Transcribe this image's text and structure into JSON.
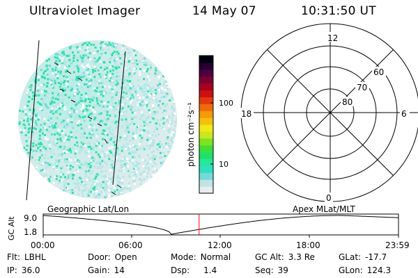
{
  "header": {
    "title": "Ultraviolet Imager",
    "date": "14 May 07",
    "time": "10:31:50 UT"
  },
  "colorbar": {
    "label": "photon cm⁻²s⁻¹",
    "ticks": [
      "100",
      "10"
    ],
    "colors": [
      "#e8ecec",
      "#bfe3e3",
      "#73d9d9",
      "#2fe0c0",
      "#24e89a",
      "#1fe06a",
      "#3de03a",
      "#7ee31f",
      "#c8e81a",
      "#f0ea12",
      "#f5c00c",
      "#f59a08",
      "#f06a08",
      "#e23a0a",
      "#cc1010",
      "#a8001e",
      "#7a0030",
      "#4e0040",
      "#250030",
      "#000010"
    ]
  },
  "polar_plot": {
    "mlt_labels": [
      "12",
      "18",
      "6",
      "0"
    ],
    "lat_labels": [
      "60",
      "70",
      "80"
    ]
  },
  "timeline": {
    "label_left": "Geographic Lat/Lon",
    "label_right": "Apex MLat/MLT",
    "y_axis_label": "GC Alt",
    "y_ticks": [
      "9.0",
      "1.8"
    ],
    "x_ticks": [
      "00:00",
      "06:00",
      "12:00",
      "18:00",
      "23:59"
    ],
    "current_marker_color": "#ff0000"
  },
  "footer": {
    "row1": [
      {
        "key": "Flt:",
        "value": "LBHL"
      },
      {
        "key": "Door:",
        "value": "Open"
      },
      {
        "key": "Mode:",
        "value": "Normal"
      },
      {
        "key": "GC Alt:",
        "value": "3.3 Re"
      },
      {
        "key": "GLat:",
        "value": "-17.7"
      }
    ],
    "row2": [
      {
        "key": "IP:",
        "value": "36.0"
      },
      {
        "key": "Gain:",
        "value": "14"
      },
      {
        "key": "Dsp:",
        "value": "1.4"
      },
      {
        "key": "Seq:",
        "value": "39"
      },
      {
        "key": "GLon:",
        "value": "124.3"
      }
    ]
  }
}
